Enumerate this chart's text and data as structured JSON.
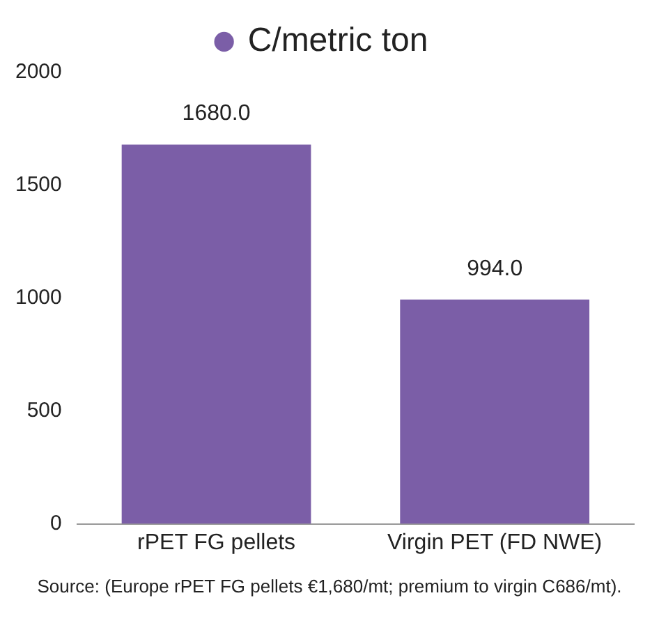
{
  "chart_data": {
    "type": "bar",
    "categories": [
      "rPET FG pellets",
      "Virgin PET (FD NWE)"
    ],
    "series": [
      {
        "name": "C/metric ton",
        "color": "#7b5ea7",
        "values": [
          1680,
          994
        ],
        "value_labels": [
          "1680.0",
          "994.0"
        ]
      }
    ],
    "ylim": [
      0,
      2000
    ],
    "yticks": [
      0,
      500,
      1000,
      1500,
      2000
    ],
    "grid": false,
    "legend": "top",
    "annotations": [
      "Source: (Europe rPET FG pellets €1,680/mt; premium to virgin C686/mt)."
    ]
  }
}
